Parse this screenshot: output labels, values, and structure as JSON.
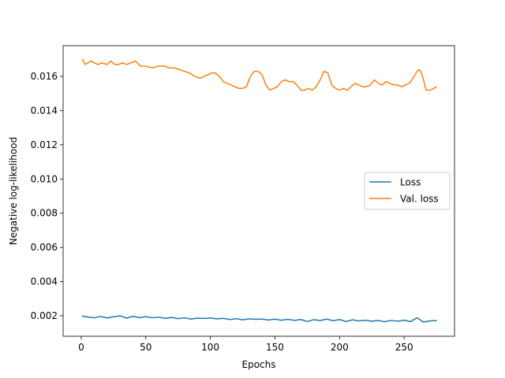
{
  "chart_data": {
    "type": "line",
    "title": "",
    "xlabel": "Epochs",
    "ylabel": "Negative log-likelihood",
    "xlim": [
      -14,
      289
    ],
    "ylim": [
      0.0008,
      0.0178
    ],
    "xticks": [
      0,
      50,
      100,
      150,
      200,
      250
    ],
    "yticks": [
      0.002,
      0.004,
      0.006,
      0.008,
      0.01,
      0.012,
      0.014,
      0.016
    ],
    "ytick_labels": [
      "0.002",
      "0.004",
      "0.006",
      "0.008",
      "0.010",
      "0.012",
      "0.014",
      "0.016"
    ],
    "grid": false,
    "legend_position": "center-right",
    "series": [
      {
        "name": "Loss",
        "color": "#1f77b4",
        "x": [
          1,
          5,
          10,
          15,
          20,
          25,
          30,
          35,
          40,
          45,
          50,
          55,
          60,
          65,
          70,
          75,
          80,
          85,
          90,
          95,
          100,
          105,
          110,
          115,
          120,
          125,
          130,
          135,
          140,
          145,
          150,
          155,
          160,
          165,
          170,
          175,
          180,
          185,
          190,
          195,
          200,
          205,
          210,
          215,
          220,
          225,
          230,
          235,
          240,
          245,
          250,
          255,
          260,
          265,
          270,
          275
        ],
        "values": [
          0.00198,
          0.00193,
          0.00188,
          0.00196,
          0.00187,
          0.00194,
          0.002,
          0.00186,
          0.00197,
          0.00189,
          0.00195,
          0.00188,
          0.00192,
          0.00185,
          0.0019,
          0.00183,
          0.00188,
          0.00181,
          0.00186,
          0.00184,
          0.00187,
          0.00182,
          0.00185,
          0.00178,
          0.00183,
          0.00176,
          0.00182,
          0.00179,
          0.00181,
          0.00175,
          0.0018,
          0.00174,
          0.00179,
          0.00173,
          0.00178,
          0.00166,
          0.00177,
          0.00172,
          0.0018,
          0.00171,
          0.00178,
          0.00166,
          0.00176,
          0.0017,
          0.00174,
          0.00168,
          0.00172,
          0.00165,
          0.00173,
          0.00168,
          0.00174,
          0.00166,
          0.00188,
          0.00163,
          0.0017,
          0.00172
        ]
      },
      {
        "name": "Val. loss",
        "color": "#ff7f0e",
        "x": [
          1,
          3,
          5,
          8,
          10,
          13,
          16,
          20,
          23,
          26,
          29,
          32,
          35,
          39,
          42,
          46,
          50,
          55,
          60,
          65,
          68,
          72,
          76,
          80,
          84,
          88,
          92,
          95,
          98,
          101,
          104,
          107,
          110,
          113,
          116,
          119,
          122,
          125,
          128,
          131,
          134,
          137,
          140,
          143,
          146,
          149,
          152,
          155,
          158,
          161,
          164,
          167,
          170,
          173,
          176,
          179,
          182,
          185,
          188,
          191,
          194,
          197,
          200,
          203,
          206,
          209,
          212,
          215,
          218,
          221,
          224,
          227,
          230,
          233,
          236,
          239,
          242,
          245,
          248,
          251,
          254,
          257,
          260,
          262,
          264,
          267,
          270,
          273,
          275
        ],
        "values": [
          0.017,
          0.0167,
          0.0168,
          0.0169,
          0.0168,
          0.0167,
          0.0168,
          0.0167,
          0.0169,
          0.0167,
          0.0167,
          0.0168,
          0.0167,
          0.0168,
          0.0169,
          0.0166,
          0.0166,
          0.0165,
          0.0166,
          0.0166,
          0.0165,
          0.0165,
          0.0164,
          0.0163,
          0.0162,
          0.016,
          0.0159,
          0.016,
          0.0161,
          0.0162,
          0.0162,
          0.016,
          0.0157,
          0.0156,
          0.0155,
          0.0154,
          0.0153,
          0.0153,
          0.0154,
          0.016,
          0.0163,
          0.0163,
          0.0161,
          0.0155,
          0.0152,
          0.0153,
          0.0154,
          0.0157,
          0.0158,
          0.0157,
          0.0157,
          0.0155,
          0.0152,
          0.0152,
          0.0153,
          0.0152,
          0.0154,
          0.0158,
          0.0163,
          0.0162,
          0.0155,
          0.0153,
          0.0152,
          0.0153,
          0.0152,
          0.0154,
          0.0156,
          0.0155,
          0.0154,
          0.0154,
          0.0155,
          0.0158,
          0.0156,
          0.0155,
          0.0157,
          0.0156,
          0.0155,
          0.0155,
          0.0154,
          0.0155,
          0.0156,
          0.0159,
          0.0163,
          0.0164,
          0.0161,
          0.0152,
          0.0152,
          0.0153,
          0.0154
        ]
      }
    ]
  }
}
